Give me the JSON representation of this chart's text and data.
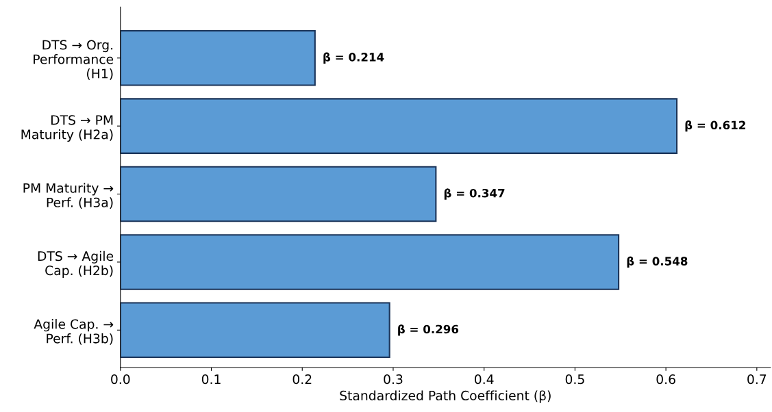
{
  "chart_data": {
    "type": "bar",
    "orientation": "horizontal",
    "xlabel": "Standardized Path Coefficient (β)",
    "categories": [
      "DTS → Org.\nPerformance\n(H1)",
      "DTS → PM\nMaturity (H2a)",
      "PM Maturity →\nPerf. (H3a)",
      "DTS → Agile\nCap. (H2b)",
      "Agile Cap. →\nPerf. (H3b)"
    ],
    "values": [
      0.214,
      0.612,
      0.347,
      0.548,
      0.296
    ],
    "value_labels": [
      "β = 0.214",
      "β = 0.612",
      "β = 0.347",
      "β = 0.548",
      "β = 0.296"
    ],
    "color": "#5b9bd5",
    "xlim": [
      0,
      0.715
    ],
    "xticks": [
      {
        "value": 0,
        "label": "0.0"
      },
      0.1,
      0.2,
      0.3,
      0.4,
      0.5,
      0.6,
      0.7
    ],
    "grid": false,
    "legend": false
  }
}
